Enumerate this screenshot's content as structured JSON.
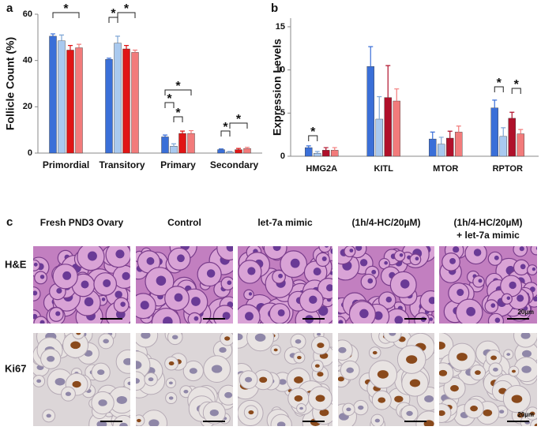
{
  "chart_data": [
    {
      "type": "bar",
      "panel": "a",
      "ylabel": "Follicle Count (%)",
      "categories": [
        "Primordial",
        "Transitory",
        "Primary",
        "Secondary"
      ],
      "series": [
        {
          "color": "#3a6fd8",
          "values": [
            50.5,
            40.5,
            7,
            1.5
          ],
          "errors": [
            1,
            0.5,
            0.8,
            0.3
          ]
        },
        {
          "color": "#a9c9ef",
          "values": [
            48.5,
            47.5,
            3,
            0.5
          ],
          "errors": [
            2.5,
            3,
            1,
            0.2
          ]
        },
        {
          "color": "#e01515",
          "values": [
            44.5,
            45,
            8.5,
            1.5
          ],
          "errors": [
            2,
            1.5,
            1,
            0.5
          ]
        },
        {
          "color": "#f27b7b",
          "values": [
            45.5,
            43.5,
            8.5,
            2
          ],
          "errors": [
            1.5,
            1,
            1.2,
            0.5
          ]
        }
      ],
      "ylim": [
        0,
        60
      ],
      "yticks": [
        0,
        20,
        40,
        60
      ],
      "annotations": [
        "*",
        "*",
        "*",
        "*",
        "*",
        "*",
        "*",
        "*"
      ]
    },
    {
      "type": "bar",
      "panel": "b",
      "ylabel": "Expression Levels",
      "categories": [
        "HMG2A",
        "KITL",
        "MTOR",
        "RPTOR"
      ],
      "series": [
        {
          "color": "#3a6fd8",
          "values": [
            1.0,
            10.4,
            2.0,
            5.6
          ],
          "errors": [
            0.2,
            2.3,
            0.8,
            0.9
          ]
        },
        {
          "color": "#a9c9ef",
          "values": [
            0.35,
            4.3,
            1.4,
            2.3
          ],
          "errors": [
            0.2,
            2.6,
            0.8,
            1.0
          ]
        },
        {
          "color": "#b0102a",
          "values": [
            0.7,
            6.8,
            2.1,
            4.4
          ],
          "errors": [
            0.3,
            3.7,
            0.8,
            0.7
          ]
        },
        {
          "color": "#f27b7b",
          "values": [
            0.7,
            6.4,
            2.8,
            2.6
          ],
          "errors": [
            0.3,
            1.4,
            0.7,
            0.5
          ]
        }
      ],
      "ylim": [
        0,
        16
      ],
      "yticks": [
        0,
        5,
        10,
        15
      ],
      "annotations": [
        "*",
        "*",
        "*"
      ]
    }
  ],
  "panel_c": {
    "label": "c",
    "columns": [
      "Fresh PND3 Ovary",
      "Control",
      "let-7a mimic",
      "(1h/4-HC/20µM)",
      "(1h/4-HC/20µM)"
    ],
    "column_note": "+ let-7a mimic",
    "rows": [
      "H&E",
      "Ki67"
    ],
    "scale_labels": [
      "20µm",
      "20µm"
    ]
  }
}
